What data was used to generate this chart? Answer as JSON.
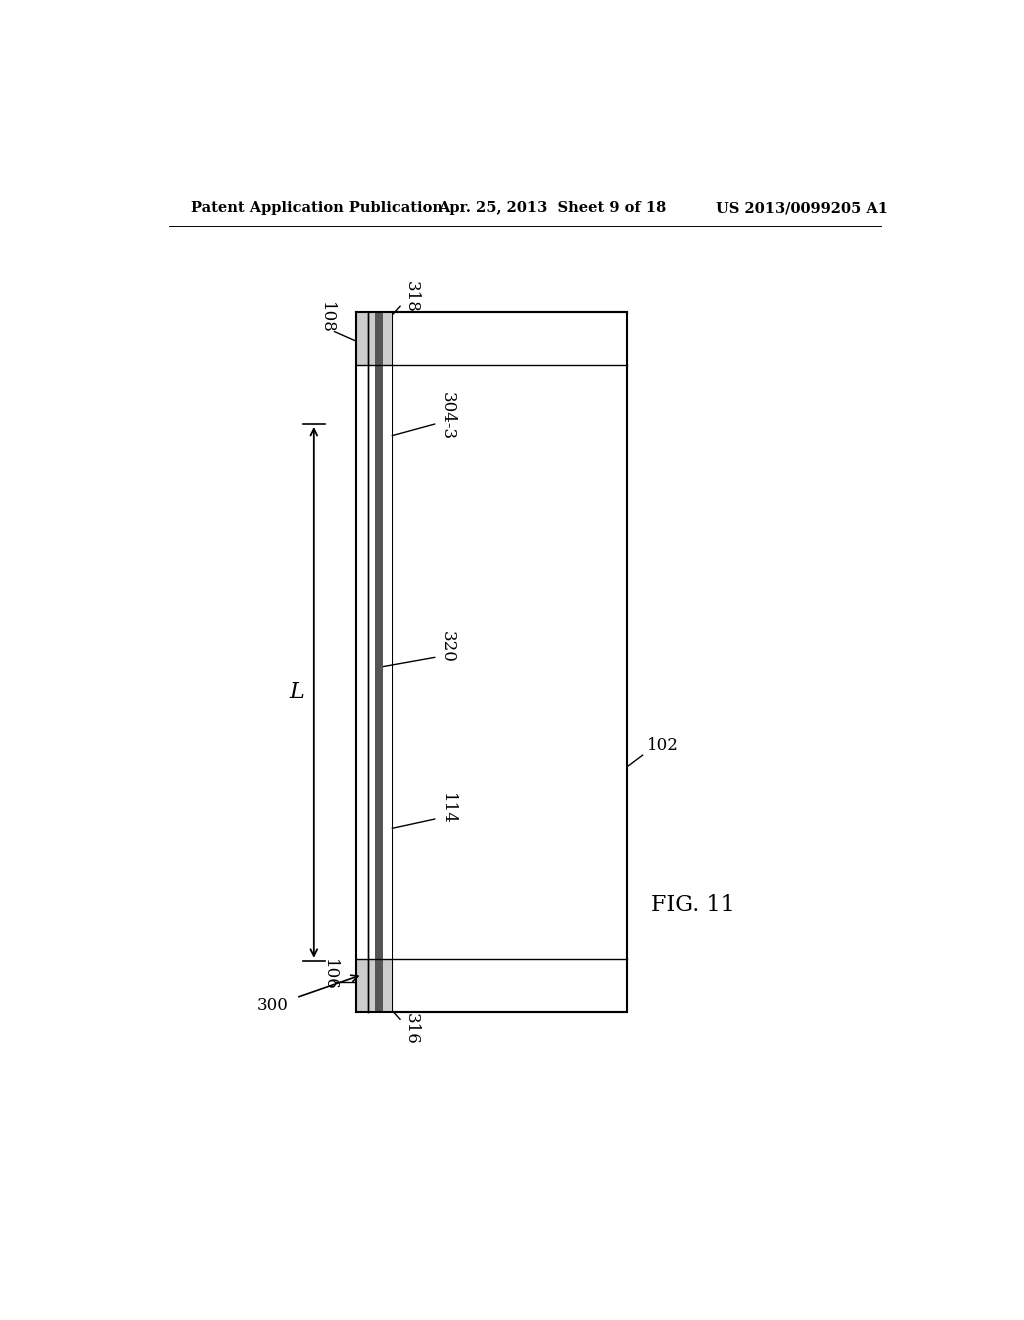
{
  "header_left": "Patent Application Publication",
  "header_mid": "Apr. 25, 2013  Sheet 9 of 18",
  "header_right": "US 2013/0099205 A1",
  "fig_label": "FIG. 11",
  "label_300": "300",
  "label_102": "102",
  "label_108": "108",
  "label_106": "106",
  "label_114": "114",
  "label_304_3": "304-3",
  "label_320": "320",
  "label_318": "318",
  "label_316": "316",
  "label_L": "L",
  "bg_color": "#ffffff"
}
